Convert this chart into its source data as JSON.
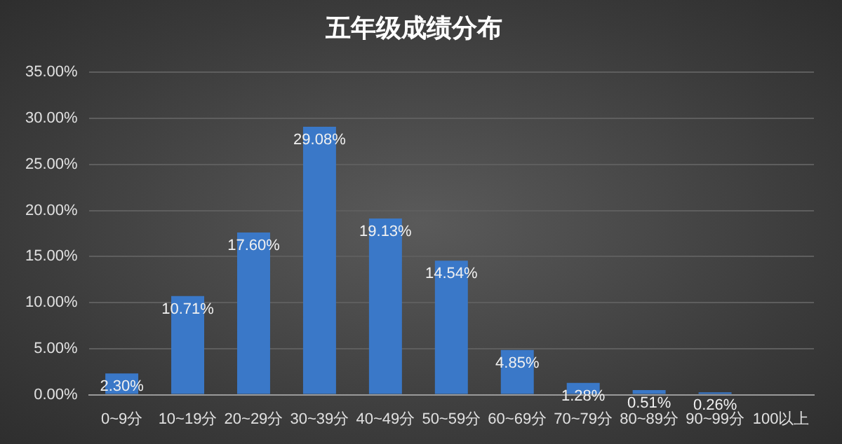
{
  "chart_data": {
    "type": "bar",
    "title": "五年级成绩分布",
    "categories": [
      "0~9分",
      "10~19分",
      "20~29分",
      "30~39分",
      "40~49分",
      "50~59分",
      "60~69分",
      "70~79分",
      "80~89分",
      "90~99分",
      "100以上"
    ],
    "values": [
      2.3,
      10.71,
      17.6,
      29.08,
      19.13,
      14.54,
      4.85,
      1.28,
      0.51,
      0.26,
      0
    ],
    "value_labels": [
      "2.30%",
      "10.71%",
      "17.60%",
      "29.08%",
      "19.13%",
      "14.54%",
      "4.85%",
      "1.28%",
      "0.51%",
      "0.26%",
      null
    ],
    "color": "#3a78c8",
    "ylim": [
      0,
      35
    ],
    "yticks": [
      {
        "value": 0,
        "label": "0.00%"
      },
      {
        "value": 5,
        "label": "5.00%"
      },
      {
        "value": 10,
        "label": "10.00%"
      },
      {
        "value": 15,
        "label": "15.00%"
      },
      {
        "value": 20,
        "label": "20.00%"
      },
      {
        "value": 25,
        "label": "25.00%"
      },
      {
        "value": 30,
        "label": "30.00%"
      },
      {
        "value": 35,
        "label": "35.00%"
      }
    ],
    "grid": "y",
    "legend": false
  }
}
